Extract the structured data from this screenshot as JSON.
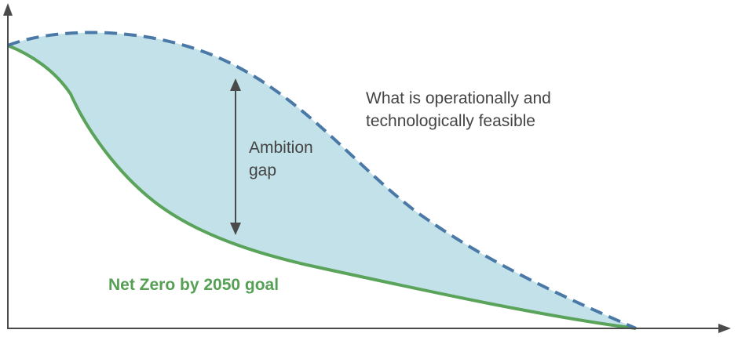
{
  "labels": {
    "feasible": [
      "What is operationally and",
      "technologically feasible"
    ],
    "gap": [
      "Ambition",
      "gap"
    ],
    "goal": "Net Zero by 2050 goal"
  },
  "colors": {
    "axis": "#4a4a4a",
    "feasible_curve": "#4a79a8",
    "goal_curve": "#5aa35a",
    "gap_fill": "#c2e1e8",
    "arrow": "#4a4a4a",
    "text": "#444444",
    "goal_text": "#55a055"
  }
}
